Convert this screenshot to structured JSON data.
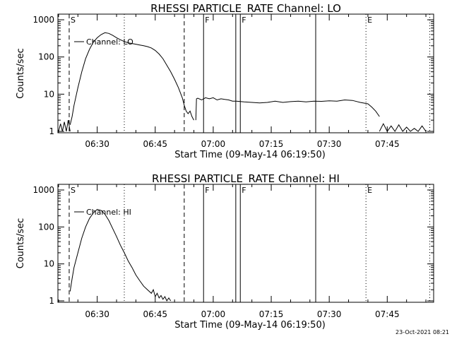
{
  "footer_stamp": "23-Oct-2021 08:21",
  "chart_data": [
    {
      "type": "line",
      "title": "RHESSI PARTICLE_RATE Channel: LO",
      "xlabel": "Start Time (09-May-14 06:19:50)",
      "ylabel": "Counts/sec",
      "y_scale": "log",
      "ylim": [
        1,
        1000
      ],
      "xlim": [
        "06:19:50",
        "07:57:00"
      ],
      "xticks": [
        "06:30",
        "06:45",
        "07:00",
        "07:15",
        "07:30",
        "07:45"
      ],
      "yticks": [
        "1",
        "10",
        "100",
        "1000"
      ],
      "legend": {
        "label": "Channel: LO",
        "placement": "top-left"
      },
      "markers": [
        {
          "time": "06:22:45",
          "style": "dashed",
          "label": "S"
        },
        {
          "time": "06:37:00",
          "style": "dotted",
          "label": ""
        },
        {
          "time": "06:52:30",
          "style": "dashed",
          "label": ""
        },
        {
          "time": "06:57:30",
          "style": "solid",
          "label": "F"
        },
        {
          "time": "07:05:50",
          "style": "solid",
          "label": ""
        },
        {
          "time": "07:07:00",
          "style": "solid",
          "label": "F"
        },
        {
          "time": "07:26:30",
          "style": "solid",
          "label": ""
        },
        {
          "time": "07:39:30",
          "style": "dotted",
          "label": "E"
        },
        {
          "time": "07:56:00",
          "style": "dotted",
          "label": ""
        }
      ],
      "series": [
        {
          "segments": [
            {
              "x": [
                "06:20:00",
                "06:20:30",
                "06:21:00",
                "06:21:30",
                "06:22:00",
                "06:22:30",
                "06:23:00"
              ],
              "y": [
                1,
                1.6,
                1,
                1.8,
                1,
                2,
                1
              ]
            },
            {
              "x": [
                "06:23:00",
                "06:23:30",
                "06:24:00",
                "06:25:00",
                "06:26:00",
                "06:27:00",
                "06:28:00",
                "06:29:00",
                "06:30:00",
                "06:31:00",
                "06:32:00",
                "06:33:00",
                "06:34:00",
                "06:35:00",
                "06:36:00",
                "06:37:00",
                "06:38:00",
                "06:39:00",
                "06:40:00",
                "06:41:00",
                "06:42:00",
                "06:43:00",
                "06:44:00",
                "06:45:00",
                "06:46:00",
                "06:47:00",
                "06:48:00",
                "06:49:00",
                "06:50:00",
                "06:51:00",
                "06:52:00",
                "06:52:30",
                "06:53:00",
                "06:53:30",
                "06:54:00",
                "06:54:30",
                "06:55:00"
              ],
              "y": [
                1.5,
                2.5,
                5,
                15,
                40,
                90,
                160,
                250,
                330,
                400,
                450,
                430,
                380,
                330,
                290,
                260,
                240,
                230,
                220,
                210,
                200,
                190,
                175,
                150,
                120,
                90,
                60,
                40,
                25,
                15,
                8,
                5,
                3.5,
                3,
                3.5,
                2.5,
                2
              ]
            },
            {
              "x": [
                "06:55:30",
                "06:55:40",
                "06:56:00",
                "06:57:00",
                "06:58:00",
                "06:59:00",
                "07:00:00",
                "07:01:00",
                "07:02:00",
                "07:03:00",
                "07:04:00",
                "07:05:00",
                "07:06:00",
                "07:08:00",
                "07:10:00",
                "07:12:00",
                "07:14:00",
                "07:16:00",
                "07:18:00",
                "07:20:00",
                "07:22:00",
                "07:24:00",
                "07:26:00",
                "07:28:00",
                "07:30:00",
                "07:32:00",
                "07:34:00",
                "07:36:00",
                "07:38:00",
                "07:40:00",
                "07:41:00",
                "07:42:00",
                "07:43:00"
              ],
              "y": [
                2,
                7.5,
                7.8,
                7,
                8,
                7.5,
                8,
                7,
                7.5,
                7.2,
                7,
                6.5,
                6.5,
                6.2,
                6,
                5.8,
                6,
                6.5,
                6,
                6.3,
                6.5,
                6.2,
                6.5,
                6.4,
                6.6,
                6.5,
                7,
                6.8,
                6,
                5.5,
                4.5,
                3.5,
                2.5
              ]
            },
            {
              "x": [
                "07:43:00",
                "07:44:00",
                "07:45:00",
                "07:46:00",
                "07:47:00",
                "07:48:00",
                "07:49:00",
                "07:50:00",
                "07:51:00",
                "07:52:00",
                "07:53:00",
                "07:54:00",
                "07:55:00"
              ],
              "y": [
                1,
                1.6,
                1,
                1.4,
                1,
                1.5,
                1,
                1.3,
                1,
                1.2,
                1,
                1.4,
                1
              ]
            }
          ]
        }
      ]
    },
    {
      "type": "line",
      "title": "RHESSI PARTICLE_RATE Channel: HI",
      "xlabel": "Start Time (09-May-14 06:19:50)",
      "ylabel": "Counts/sec",
      "y_scale": "log",
      "ylim": [
        1,
        1000
      ],
      "xlim": [
        "06:19:50",
        "07:57:00"
      ],
      "xticks": [
        "06:30",
        "06:45",
        "07:00",
        "07:15",
        "07:30",
        "07:45"
      ],
      "yticks": [
        "1",
        "10",
        "100",
        "1000"
      ],
      "legend": {
        "label": "Channel: HI",
        "placement": "top-left"
      },
      "markers": [
        {
          "time": "06:22:45",
          "style": "dashed",
          "label": "S"
        },
        {
          "time": "06:37:00",
          "style": "dotted",
          "label": ""
        },
        {
          "time": "06:52:30",
          "style": "dashed",
          "label": ""
        },
        {
          "time": "06:57:30",
          "style": "solid",
          "label": "F"
        },
        {
          "time": "07:05:50",
          "style": "solid",
          "label": ""
        },
        {
          "time": "07:07:00",
          "style": "solid",
          "label": "F"
        },
        {
          "time": "07:26:30",
          "style": "solid",
          "label": ""
        },
        {
          "time": "07:39:30",
          "style": "dotted",
          "label": "E"
        },
        {
          "time": "07:56:00",
          "style": "dotted",
          "label": ""
        }
      ],
      "series": [
        {
          "segments": [
            {
              "x": [
                "06:23:00",
                "06:23:30",
                "06:24:00",
                "06:25:00",
                "06:26:00",
                "06:27:00",
                "06:28:00",
                "06:29:00",
                "06:30:00",
                "06:31:00",
                "06:32:00",
                "06:33:00",
                "06:34:00",
                "06:35:00",
                "06:36:00",
                "06:37:00",
                "06:38:00",
                "06:39:00",
                "06:40:00",
                "06:41:00",
                "06:42:00",
                "06:43:00",
                "06:44:00",
                "06:44:30",
                "06:45:00",
                "06:45:30",
                "06:46:00",
                "06:46:30",
                "06:47:00",
                "06:47:30",
                "06:48:00",
                "06:48:30",
                "06:49:00"
              ],
              "y": [
                1.8,
                4,
                8,
                20,
                50,
                100,
                170,
                240,
                300,
                280,
                220,
                150,
                90,
                55,
                32,
                20,
                12,
                8,
                5,
                3.5,
                2.5,
                2,
                1.6,
                2,
                1.3,
                1.6,
                1.2,
                1.4,
                1.1,
                1.3,
                1,
                1.2,
                1
              ]
            }
          ]
        }
      ]
    }
  ]
}
